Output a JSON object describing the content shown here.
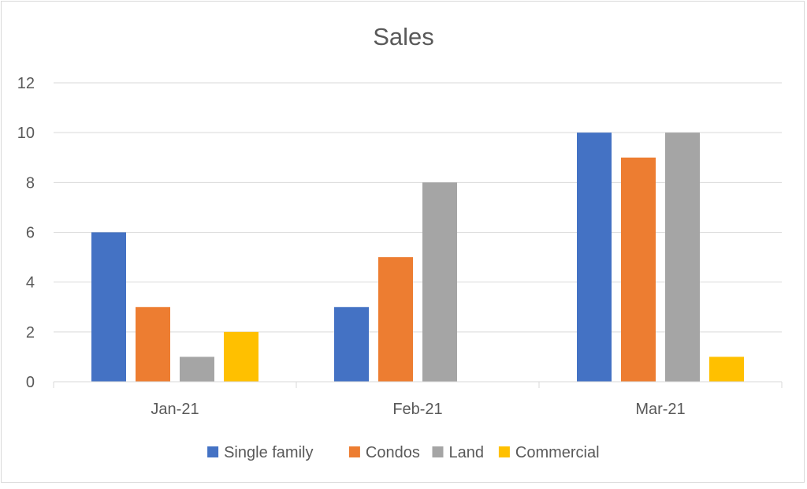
{
  "chart_data": {
    "type": "bar",
    "title": "Sales",
    "xlabel": "",
    "ylabel": "",
    "categories": [
      "Jan-21",
      "Feb-21",
      "Mar-21"
    ],
    "series": [
      {
        "name": "Single family",
        "values": [
          6,
          3,
          10
        ],
        "color": "#4472C4"
      },
      {
        "name": "Condos",
        "values": [
          3,
          5,
          9
        ],
        "color": "#ED7D31"
      },
      {
        "name": "Land",
        "values": [
          1,
          8,
          10
        ],
        "color": "#A5A5A5"
      },
      {
        "name": "Commercial",
        "values": [
          2,
          0,
          1
        ],
        "color": "#FFC000"
      }
    ],
    "ylim": [
      0,
      12
    ],
    "yticks": [
      0,
      2,
      4,
      6,
      8,
      10,
      12
    ],
    "grid": true,
    "legend": "bottom"
  }
}
